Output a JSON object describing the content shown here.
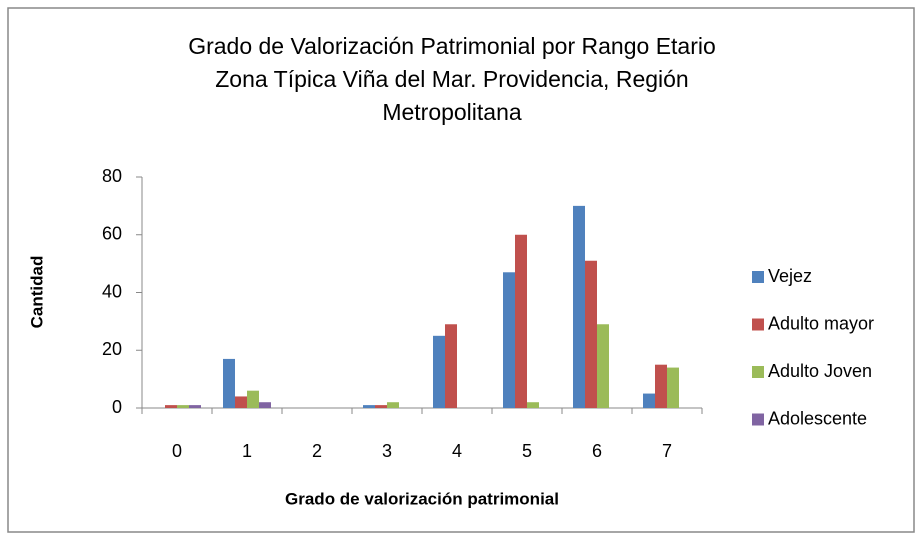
{
  "chart_data": {
    "type": "bar",
    "title": [
      "Grado de Valorización Patrimonial por Rango Etario",
      "Zona Típica Viña del Mar. Providencia, Región",
      "Metropolitana"
    ],
    "xlabel": "Grado de valorización patrimonial",
    "ylabel": "Cantidad",
    "categories": [
      "0",
      "1",
      "2",
      "3",
      "4",
      "5",
      "6",
      "7"
    ],
    "series": [
      {
        "name": "Vejez",
        "color": "#4f81bd",
        "values": [
          0,
          17,
          0,
          1,
          25,
          47,
          70,
          5
        ]
      },
      {
        "name": "Adulto mayor",
        "color": "#c0504d",
        "values": [
          1,
          4,
          0,
          1,
          29,
          60,
          51,
          15
        ]
      },
      {
        "name": "Adulto Joven",
        "color": "#9bbb59",
        "values": [
          1,
          6,
          0,
          2,
          0,
          2,
          29,
          14
        ]
      },
      {
        "name": "Adolescente",
        "color": "#8064a2",
        "values": [
          1,
          2,
          0,
          0,
          0,
          0,
          0,
          0
        ]
      }
    ],
    "ylim": [
      0,
      80
    ],
    "yticks": [
      0,
      20,
      40,
      60,
      80
    ],
    "grid": false,
    "legend": "right"
  }
}
